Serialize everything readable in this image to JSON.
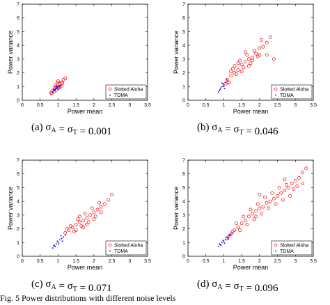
{
  "chart_data": [
    {
      "type": "scatter",
      "panel_label": "(a)",
      "sigma_value": "0.001",
      "xlabel": "Power mean",
      "ylabel": "Power variance",
      "xlim": [
        0,
        3.5
      ],
      "ylim": [
        0,
        7
      ],
      "xticks": [
        "0",
        "0.5",
        "1",
        "1.5",
        "2",
        "2.5",
        "3",
        "3.5"
      ],
      "yticks": [
        "0",
        "1",
        "2",
        "3",
        "4",
        "5",
        "6",
        "7"
      ],
      "legend_position": "bottom-right",
      "series": [
        {
          "name": "Slotted Aloha",
          "marker": "circle",
          "color": "#ff0000",
          "points": [
            [
              0.8,
              0.55
            ],
            [
              0.85,
              0.7
            ],
            [
              0.9,
              0.8
            ],
            [
              0.95,
              1.0
            ],
            [
              1.0,
              0.9
            ],
            [
              1.05,
              1.2
            ],
            [
              1.1,
              1.3
            ],
            [
              0.88,
              0.6
            ],
            [
              0.92,
              1.1
            ],
            [
              1.0,
              1.4
            ],
            [
              1.05,
              0.95
            ],
            [
              1.15,
              1.5
            ],
            [
              0.95,
              0.75
            ],
            [
              1.0,
              1.1
            ],
            [
              1.1,
              1.0
            ],
            [
              0.82,
              0.5
            ],
            [
              1.2,
              1.6
            ],
            [
              1.12,
              1.25
            ],
            [
              0.98,
              1.3
            ],
            [
              0.9,
              0.9
            ]
          ]
        },
        {
          "name": "TDMA",
          "marker": "point",
          "color": "#0000ff",
          "points": [
            [
              0.85,
              0.6
            ],
            [
              0.9,
              0.7
            ],
            [
              0.95,
              0.85
            ],
            [
              1.0,
              0.9
            ],
            [
              1.05,
              1.0
            ],
            [
              0.92,
              0.8
            ],
            [
              0.98,
              0.95
            ],
            [
              1.02,
              1.05
            ],
            [
              0.88,
              0.75
            ],
            [
              1.08,
              1.1
            ],
            [
              0.95,
              1.0
            ],
            [
              1.0,
              0.8
            ]
          ]
        }
      ]
    },
    {
      "type": "scatter",
      "panel_label": "(b)",
      "sigma_value": "0.046",
      "xlabel": "Power mean",
      "ylabel": "Power variance",
      "xlim": [
        0,
        3.5
      ],
      "ylim": [
        0,
        7
      ],
      "xticks": [
        "0",
        "0.5",
        "1",
        "1.5",
        "2",
        "2.5",
        "3",
        "3.5"
      ],
      "yticks": [
        "0",
        "1",
        "2",
        "3",
        "4",
        "5",
        "6",
        "7"
      ],
      "legend_position": "bottom-right",
      "series": [
        {
          "name": "Slotted Aloha",
          "marker": "circle",
          "color": "#ff0000",
          "points": [
            [
              1.1,
              1.5
            ],
            [
              1.2,
              1.8
            ],
            [
              1.3,
              2.0
            ],
            [
              1.4,
              2.2
            ],
            [
              1.5,
              2.6
            ],
            [
              1.6,
              2.8
            ],
            [
              1.7,
              3.0
            ],
            [
              1.8,
              3.1
            ],
            [
              1.9,
              3.4
            ],
            [
              2.0,
              3.8
            ],
            [
              2.1,
              3.9
            ],
            [
              2.2,
              4.2
            ],
            [
              2.3,
              4.6
            ],
            [
              1.25,
              2.3
            ],
            [
              1.35,
              1.9
            ],
            [
              1.45,
              2.9
            ],
            [
              1.55,
              2.4
            ],
            [
              1.65,
              3.3
            ],
            [
              1.75,
              2.7
            ],
            [
              1.85,
              3.6
            ],
            [
              1.95,
              3.2
            ],
            [
              2.05,
              4.4
            ],
            [
              1.15,
              1.3
            ],
            [
              1.05,
              1.2
            ],
            [
              1.5,
              2.1
            ],
            [
              1.6,
              3.5
            ],
            [
              1.4,
              2.7
            ],
            [
              2.4,
              3.0
            ],
            [
              2.2,
              3.3
            ],
            [
              1.3,
              2.5
            ],
            [
              1.2,
              2.1
            ],
            [
              1.7,
              2.5
            ],
            [
              1.8,
              2.9
            ],
            [
              2.0,
              3.3
            ]
          ]
        },
        {
          "name": "TDMA",
          "marker": "point",
          "color": "#0000ff",
          "points": [
            [
              0.85,
              0.6
            ],
            [
              0.9,
              0.8
            ],
            [
              0.95,
              1.0
            ],
            [
              1.0,
              1.1
            ],
            [
              1.05,
              1.3
            ],
            [
              1.1,
              1.4
            ],
            [
              0.92,
              0.9
            ],
            [
              0.98,
              1.2
            ],
            [
              1.02,
              0.85
            ],
            [
              1.08,
              1.5
            ],
            [
              0.88,
              0.7
            ],
            [
              1.0,
              1.0
            ],
            [
              0.95,
              1.25
            ],
            [
              1.12,
              1.2
            ]
          ]
        }
      ]
    },
    {
      "type": "scatter",
      "panel_label": "(c)",
      "sigma_value": "0.071",
      "xlabel": "Power mean",
      "ylabel": "Power variance",
      "xlim": [
        0,
        3.5
      ],
      "ylim": [
        0,
        7
      ],
      "xticks": [
        "0",
        "0.5",
        "1",
        "1.5",
        "2",
        "2.5",
        "3",
        "3.5"
      ],
      "yticks": [
        "0",
        "1",
        "2",
        "3",
        "4",
        "5",
        "6",
        "7"
      ],
      "legend_position": "bottom-right",
      "series": [
        {
          "name": "Slotted Aloha",
          "marker": "circle",
          "color": "#ff0000",
          "points": [
            [
              1.2,
              1.7
            ],
            [
              1.3,
              1.9
            ],
            [
              1.4,
              2.1
            ],
            [
              1.5,
              2.3
            ],
            [
              1.6,
              2.5
            ],
            [
              1.7,
              2.6
            ],
            [
              1.8,
              2.8
            ],
            [
              1.9,
              3.0
            ],
            [
              2.0,
              3.2
            ],
            [
              2.1,
              3.4
            ],
            [
              2.2,
              3.6
            ],
            [
              2.3,
              3.8
            ],
            [
              2.4,
              4.1
            ],
            [
              1.35,
              2.2
            ],
            [
              1.45,
              1.8
            ],
            [
              1.55,
              2.7
            ],
            [
              1.65,
              2.2
            ],
            [
              1.75,
              3.1
            ],
            [
              1.85,
              2.5
            ],
            [
              1.95,
              3.5
            ],
            [
              2.05,
              2.9
            ],
            [
              2.15,
              3.9
            ],
            [
              2.5,
              4.5
            ],
            [
              1.25,
              2.0
            ],
            [
              1.6,
              2.9
            ],
            [
              1.8,
              2.3
            ],
            [
              2.0,
              2.7
            ],
            [
              1.5,
              1.9
            ],
            [
              2.2,
              3.2
            ],
            [
              1.7,
              2.1
            ]
          ]
        },
        {
          "name": "TDMA",
          "marker": "point",
          "color": "#0000ff",
          "points": [
            [
              0.85,
              0.6
            ],
            [
              0.9,
              0.8
            ],
            [
              0.95,
              0.9
            ],
            [
              1.0,
              1.0
            ],
            [
              1.05,
              1.2
            ],
            [
              1.1,
              1.3
            ],
            [
              1.15,
              1.4
            ],
            [
              0.92,
              0.7
            ],
            [
              0.98,
              1.1
            ],
            [
              1.02,
              0.9
            ],
            [
              1.08,
              1.5
            ],
            [
              0.88,
              0.75
            ],
            [
              1.12,
              1.1
            ],
            [
              1.2,
              1.55
            ]
          ]
        }
      ]
    },
    {
      "type": "scatter",
      "panel_label": "(d)",
      "sigma_value": "0.096",
      "xlabel": "Power mean",
      "ylabel": "Power variance",
      "xlim": [
        0,
        3.5
      ],
      "ylim": [
        0,
        7
      ],
      "xticks": [
        "0",
        "0.5",
        "1",
        "1.5",
        "2",
        "2.5",
        "3",
        "3.5"
      ],
      "yticks": [
        "0",
        "1",
        "2",
        "3",
        "4",
        "5",
        "6",
        "7"
      ],
      "legend_position": "bottom-right",
      "series": [
        {
          "name": "Slotted Aloha",
          "marker": "circle",
          "color": "#ff0000",
          "points": [
            [
              1.1,
              1.3
            ],
            [
              1.2,
              1.6
            ],
            [
              1.3,
              1.9
            ],
            [
              1.4,
              2.1
            ],
            [
              1.5,
              2.4
            ],
            [
              1.6,
              2.6
            ],
            [
              1.7,
              2.9
            ],
            [
              1.8,
              3.1
            ],
            [
              1.9,
              3.3
            ],
            [
              2.0,
              3.5
            ],
            [
              2.1,
              3.6
            ],
            [
              2.2,
              3.9
            ],
            [
              2.3,
              4.0
            ],
            [
              2.4,
              4.2
            ],
            [
              2.5,
              4.4
            ],
            [
              2.6,
              4.6
            ],
            [
              2.7,
              4.8
            ],
            [
              2.8,
              5.0
            ],
            [
              2.9,
              5.3
            ],
            [
              3.0,
              5.5
            ],
            [
              3.1,
              5.7
            ],
            [
              3.2,
              6.1
            ],
            [
              3.3,
              6.4
            ],
            [
              1.35,
              2.4
            ],
            [
              1.45,
              1.9
            ],
            [
              1.55,
              2.9
            ],
            [
              1.65,
              2.3
            ],
            [
              1.75,
              3.4
            ],
            [
              1.85,
              2.7
            ],
            [
              1.95,
              3.8
            ],
            [
              2.05,
              3.1
            ],
            [
              2.15,
              4.3
            ],
            [
              2.25,
              3.5
            ],
            [
              2.35,
              4.6
            ],
            [
              2.45,
              3.8
            ],
            [
              2.55,
              5.0
            ],
            [
              2.65,
              4.1
            ],
            [
              2.75,
              5.2
            ],
            [
              2.85,
              4.4
            ],
            [
              2.95,
              4.9
            ],
            [
              3.05,
              5.1
            ],
            [
              1.25,
              1.8
            ],
            [
              1.15,
              1.5
            ],
            [
              2.7,
              5.6
            ],
            [
              2.0,
              4.5
            ],
            [
              1.9,
              2.9
            ],
            [
              3.2,
              5.3
            ]
          ]
        },
        {
          "name": "TDMA",
          "marker": "point",
          "color": "#0000ff",
          "points": [
            [
              0.85,
              0.7
            ],
            [
              0.9,
              0.85
            ],
            [
              0.95,
              1.0
            ],
            [
              1.0,
              1.1
            ],
            [
              1.05,
              1.2
            ],
            [
              1.1,
              1.35
            ],
            [
              1.15,
              1.5
            ],
            [
              0.92,
              0.8
            ],
            [
              0.98,
              1.15
            ],
            [
              1.02,
              0.95
            ],
            [
              1.08,
              1.4
            ],
            [
              0.88,
              0.9
            ],
            [
              1.12,
              1.25
            ],
            [
              1.2,
              1.6
            ],
            [
              1.25,
              1.7
            ]
          ]
        }
      ]
    }
  ],
  "bottom_text": "Fig. 5   Power distributions with different noise levels"
}
